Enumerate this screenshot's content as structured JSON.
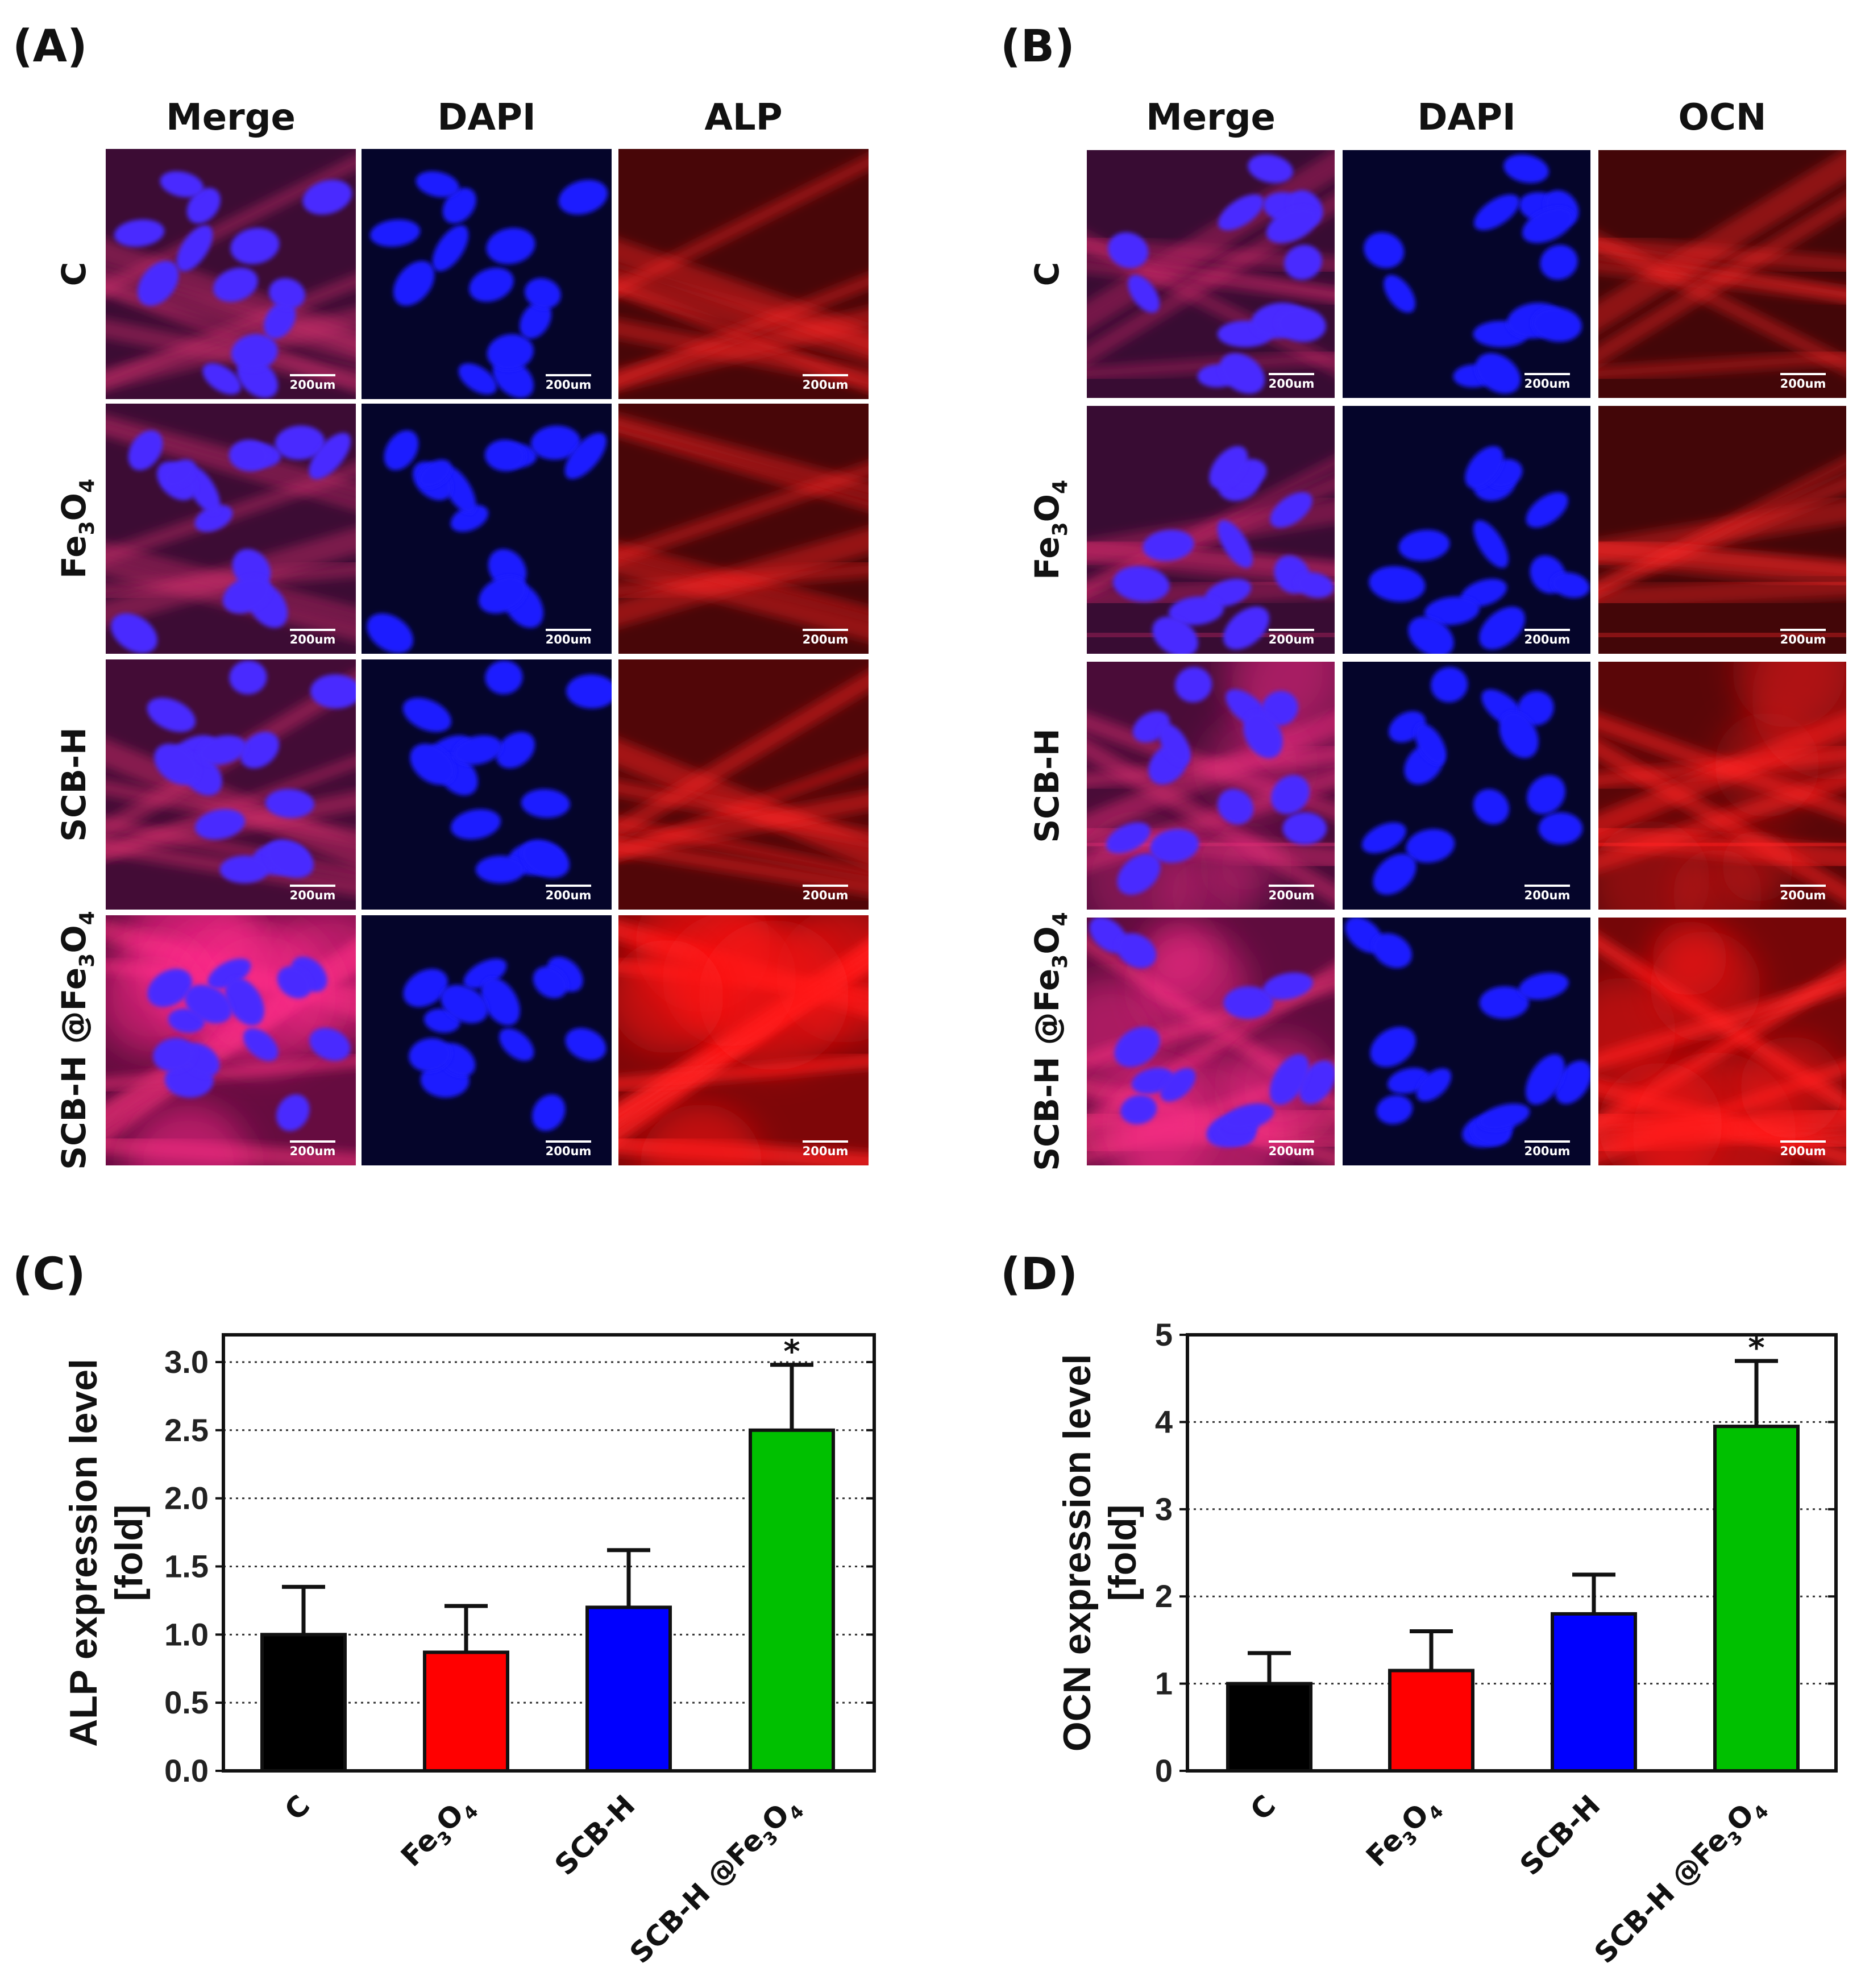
{
  "figure": {
    "panels": [
      {
        "label": "(A)",
        "columns": [
          "Merge",
          "DAPI",
          "ALP"
        ],
        "rows": [
          {
            "name": "C",
            "base": "",
            "sub1": "",
            "mid": "",
            "sub2": ""
          },
          {
            "name": "Fe3O4",
            "base": "Fe",
            "sub1": "3",
            "mid": "O",
            "sub2": "4"
          },
          {
            "name": "SCB-H",
            "base": "SCB-H",
            "sub1": "",
            "mid": "",
            "sub2": ""
          },
          {
            "name": "SCB-H @Fe3O4",
            "base": "SCB-H @Fe",
            "sub1": "3",
            "mid": "O",
            "sub2": "4"
          }
        ],
        "scale_bar": "200um",
        "stain_intensity": [
          0.35,
          0.35,
          0.45,
          0.95
        ],
        "nucleus_color": "#1f1fff",
        "stain_color": "#e01010"
      },
      {
        "label": "(B)",
        "columns": [
          "Merge",
          "DAPI",
          "OCN"
        ],
        "rows": [
          {
            "name": "C",
            "base": "",
            "sub1": "",
            "mid": "",
            "sub2": ""
          },
          {
            "name": "Fe3O4",
            "base": "Fe",
            "sub1": "3",
            "mid": "O",
            "sub2": "4"
          },
          {
            "name": "SCB-H",
            "base": "SCB-H",
            "sub1": "",
            "mid": "",
            "sub2": ""
          },
          {
            "name": "SCB-H @Fe3O4",
            "base": "SCB-H @Fe",
            "sub1": "3",
            "mid": "O",
            "sub2": "4"
          }
        ],
        "scale_bar": "200um",
        "stain_intensity": [
          0.3,
          0.3,
          0.55,
          0.85
        ],
        "nucleus_color": "#1f1fff",
        "stain_color": "#e01010"
      }
    ]
  },
  "chart_data": [
    {
      "panel_label": "(C)",
      "type": "bar",
      "categories": [
        "C",
        "Fe3O4",
        "SCB-H",
        "SCB-H @Fe3O4"
      ],
      "category_parts": [
        {
          "base": "C",
          "sub1": "",
          "mid": "",
          "sub2": ""
        },
        {
          "base": "Fe",
          "sub1": "3",
          "mid": "O",
          "sub2": "4"
        },
        {
          "base": "SCB-H",
          "sub1": "",
          "mid": "",
          "sub2": ""
        },
        {
          "base": "SCB-H @Fe",
          "sub1": "3",
          "mid": "O",
          "sub2": "4"
        }
      ],
      "values": [
        1.0,
        0.87,
        1.2,
        2.5
      ],
      "errors": [
        0.35,
        0.34,
        0.42,
        0.48
      ],
      "colors": [
        "#000000",
        "#ff0000",
        "#0000ff",
        "#00c000"
      ],
      "significance": [
        "",
        "",
        "",
        "*"
      ],
      "ylabel_line1": "ALP expression level",
      "ylabel_line2": "[fold]",
      "ylim": [
        0,
        3.2
      ],
      "yticks": [
        "0.0",
        "0.5",
        "1.0",
        "1.5",
        "2.0",
        "2.5",
        "3.0"
      ],
      "grid": "dotted horizontal",
      "title": ""
    },
    {
      "panel_label": "(D)",
      "type": "bar",
      "categories": [
        "C",
        "Fe3O4",
        "SCB-H",
        "SCB-H @Fe3O4"
      ],
      "category_parts": [
        {
          "base": "C",
          "sub1": "",
          "mid": "",
          "sub2": ""
        },
        {
          "base": "Fe",
          "sub1": "3",
          "mid": "O",
          "sub2": "4"
        },
        {
          "base": "SCB-H",
          "sub1": "",
          "mid": "",
          "sub2": ""
        },
        {
          "base": "SCB-H @Fe",
          "sub1": "3",
          "mid": "O",
          "sub2": "4"
        }
      ],
      "values": [
        1.0,
        1.15,
        1.8,
        3.95
      ],
      "errors": [
        0.35,
        0.45,
        0.45,
        0.75
      ],
      "colors": [
        "#000000",
        "#ff0000",
        "#0000ff",
        "#00c000"
      ],
      "significance": [
        "",
        "",
        "",
        "*"
      ],
      "ylabel_line1": "OCN expression level",
      "ylabel_line2": "[fold]",
      "ylim": [
        0,
        5
      ],
      "yticks": [
        "0",
        "1",
        "2",
        "3",
        "4",
        "5"
      ],
      "grid": "dotted horizontal",
      "title": ""
    }
  ]
}
